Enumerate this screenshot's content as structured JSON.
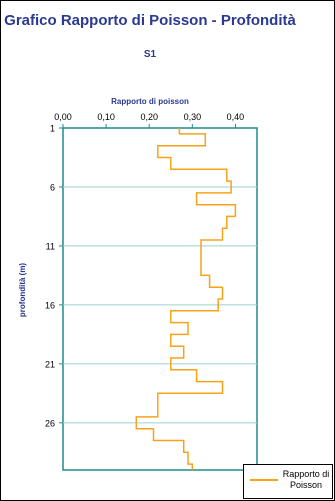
{
  "chart_data": {
    "type": "line",
    "title": "Grafico Rapporto di Poisson - Profondità",
    "subtitle": "S1",
    "xlabel": "Rapporto di poisson",
    "ylabel": "profondità (m)",
    "x_ticks": [
      "0,00",
      "0,10",
      "0,20",
      "0,30",
      "0,40"
    ],
    "y_ticks": [
      "1",
      "6",
      "11",
      "16",
      "21",
      "26"
    ],
    "xlim": [
      0,
      0.45
    ],
    "ylim": [
      1,
      30
    ],
    "grid": "horizontal",
    "legend_position": "bottom-right",
    "colors": {
      "series": "#f7a21b",
      "axis": "#1f8a8a",
      "grid": "#9ad0d0",
      "text": "#2b3990"
    },
    "series": [
      {
        "name": "Rapporto di Poisson",
        "depth": [
          1,
          2,
          3,
          4,
          5,
          6,
          7,
          8,
          9,
          10,
          11,
          12,
          13,
          14,
          15,
          16,
          17,
          18,
          19,
          20,
          21,
          22,
          23,
          24,
          25,
          26,
          27,
          28,
          29,
          30
        ],
        "values": [
          0.27,
          0.33,
          0.22,
          0.25,
          0.38,
          0.39,
          0.31,
          0.4,
          0.38,
          0.37,
          0.32,
          0.32,
          0.32,
          0.34,
          0.37,
          0.36,
          0.25,
          0.29,
          0.25,
          0.28,
          0.25,
          0.31,
          0.37,
          0.22,
          0.22,
          0.17,
          0.21,
          0.28,
          0.29,
          0.3
        ]
      }
    ]
  }
}
